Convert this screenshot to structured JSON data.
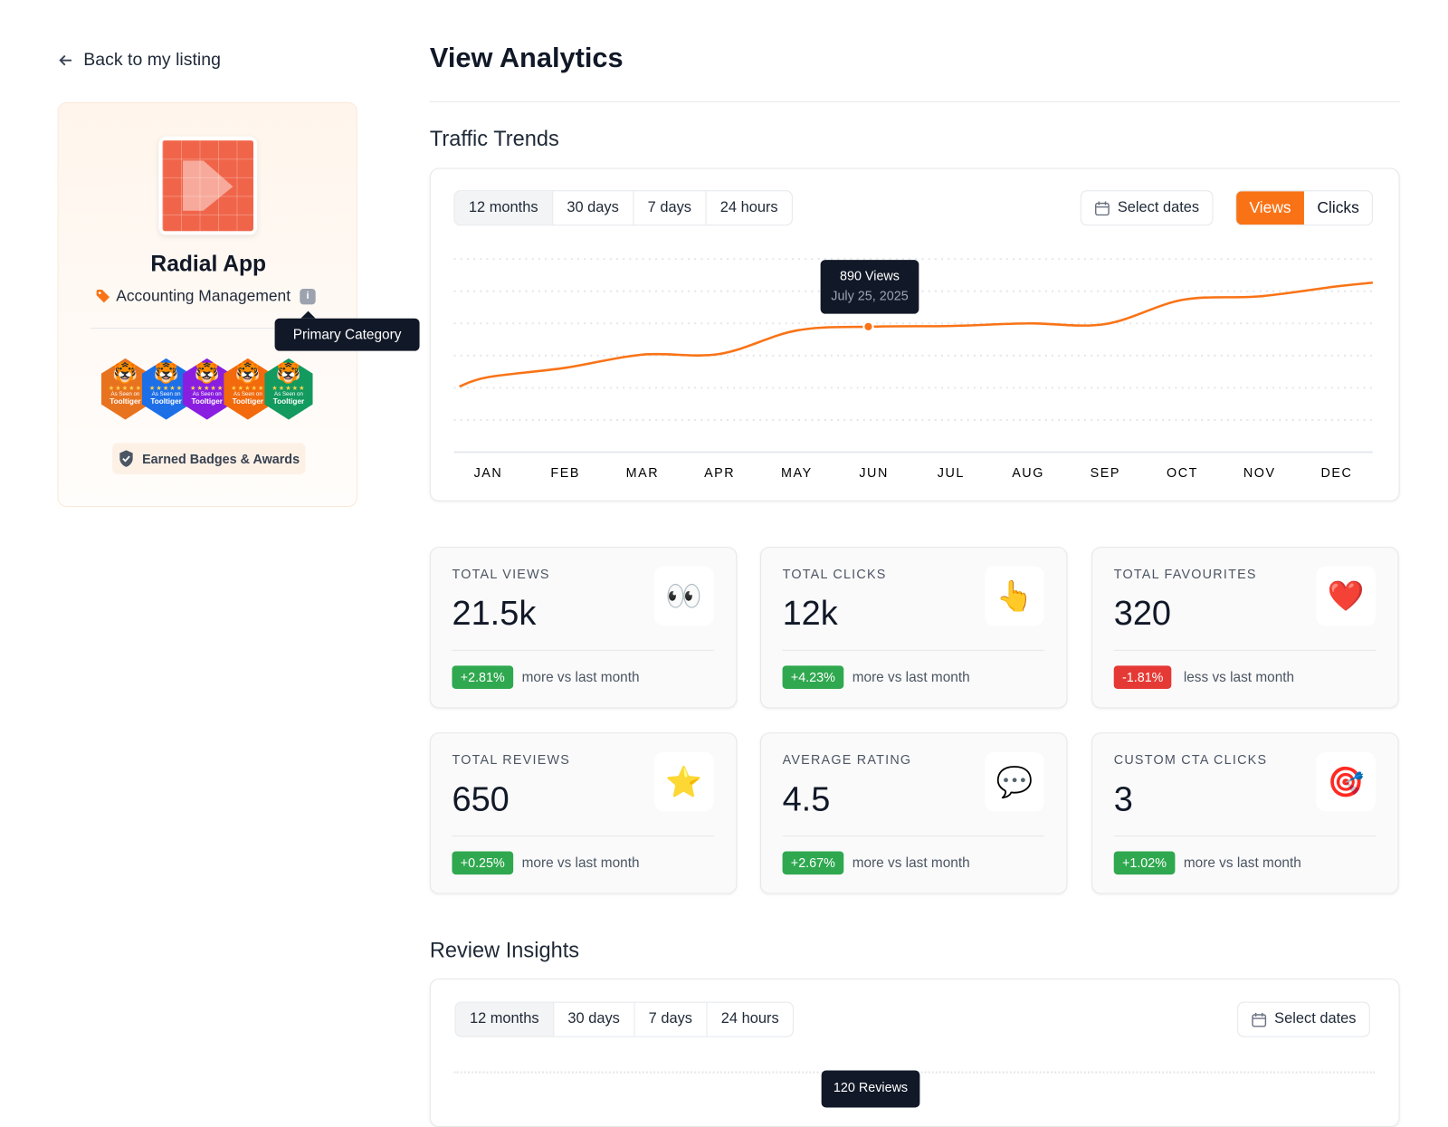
{
  "nav": {
    "back_label": "Back to my listing"
  },
  "listing": {
    "name": "Radial App",
    "category": "Accounting Management",
    "info_icon": "i",
    "category_tooltip": "Primary Category",
    "badges": [
      {
        "color": "#e8731f",
        "line1": "As Seen on",
        "line2": "Tooltiger"
      },
      {
        "color": "#1d6fe8",
        "line1": "As Seen on",
        "line2": "Tooltiger"
      },
      {
        "color": "#8a1ee0",
        "line1": "As Seen on",
        "line2": "Tooltiger"
      },
      {
        "color": "#f26a0c",
        "line1": "As Seen on",
        "line2": "Tooltiger"
      },
      {
        "color": "#129a5f",
        "line1": "As Seen on",
        "line2": "Tooltiger"
      }
    ],
    "earned_label": "Earned Badges & Awards"
  },
  "page": {
    "title": "View Analytics"
  },
  "traffic": {
    "title": "Traffic Trends",
    "tabs": [
      "12 months",
      "30 days",
      "7 days",
      "24 hours"
    ],
    "select_dates": "Select dates",
    "toggle": [
      "Views",
      "Clicks"
    ],
    "active_toggle": "Views",
    "tooltip": {
      "value": "890 Views",
      "date": "July 25, 2025"
    }
  },
  "chart_data": {
    "type": "line",
    "categories": [
      "JAN",
      "FEB",
      "MAR",
      "APR",
      "MAY",
      "JUN",
      "JUL",
      "AUG",
      "SEP",
      "OCT",
      "NOV",
      "DEC"
    ],
    "values": [
      733,
      762,
      803,
      805,
      878,
      890,
      892,
      900,
      898,
      973,
      984,
      1015
    ],
    "ylim": [
      500,
      1100
    ],
    "grid": true,
    "highlight_index": 5,
    "color": "#f97316"
  },
  "stats": [
    {
      "label": "TOTAL VIEWS",
      "value": "21.5k",
      "icon": "👀",
      "icon_name": "eyes-icon",
      "change": "+2.81%",
      "trend": "up",
      "compare": "more vs last month"
    },
    {
      "label": "TOTAL CLICKS",
      "value": "12k",
      "icon": "👆",
      "icon_name": "pointing-hand-icon",
      "change": "+4.23%",
      "trend": "up",
      "compare": "more vs last month"
    },
    {
      "label": "TOTAL FAVOURITES",
      "value": "320",
      "icon": "❤️",
      "icon_name": "heart-icon",
      "change": "-1.81%",
      "trend": "down",
      "compare": "less vs last month"
    },
    {
      "label": "TOTAL REVIEWS",
      "value": "650",
      "icon": "⭐",
      "icon_name": "star-icon",
      "change": "+0.25%",
      "trend": "up",
      "compare": "more vs last month"
    },
    {
      "label": "AVERAGE RATING",
      "value": "4.5",
      "icon": "💬",
      "icon_name": "speech-bubble-icon",
      "change": "+2.67%",
      "trend": "up",
      "compare": "more vs last month"
    },
    {
      "label": "CUSTOM CTA CLICKS",
      "value": "3",
      "icon": "🎯",
      "icon_name": "target-icon",
      "change": "+1.02%",
      "trend": "up",
      "compare": "more vs last month"
    }
  ],
  "colors": {
    "up": "#2fa84f",
    "down": "#e53935",
    "accent": "#f97316"
  },
  "reviews": {
    "title": "Review Insights",
    "tabs": [
      "12 months",
      "30 days",
      "7 days",
      "24 hours"
    ],
    "select_dates": "Select dates",
    "tooltip": "120 Reviews"
  }
}
